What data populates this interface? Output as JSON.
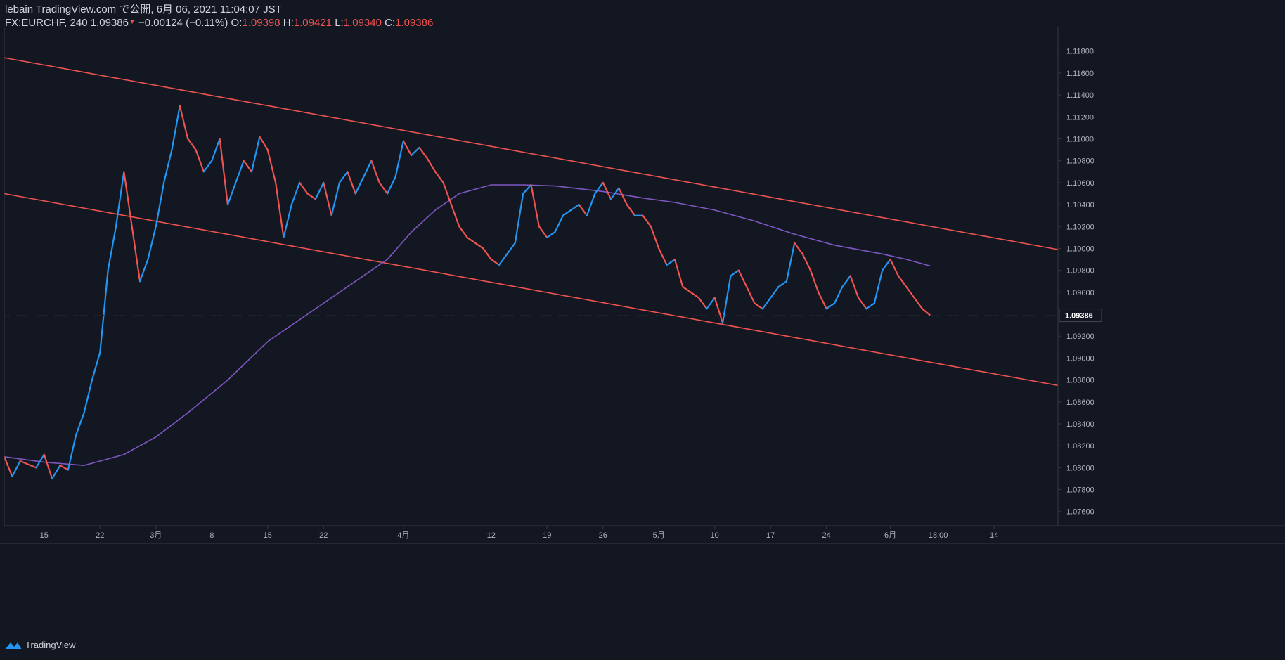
{
  "header": {
    "published_line": "lebain TradingView.com で公開, 6月 06, 2021 11:04:07 JST",
    "symbol": "FX:EURCHF, 240",
    "last_price": "1.09386",
    "change": "−0.00124 (−0.11%)",
    "o_label": "O:",
    "o_value": "1.09398",
    "h_label": "H:",
    "h_value": "1.09421",
    "l_label": "L:",
    "l_value": "1.09340",
    "c_label": "C:",
    "c_value": "1.09386"
  },
  "footer": {
    "brand": "TradingView"
  },
  "colors": {
    "background": "#131722",
    "up": "#2196f3",
    "down": "#ef5350",
    "channel": "#ef5350",
    "moving_average": "#7e57c2",
    "text": "#d1d4dc",
    "axis_text": "#b2b5be",
    "axis_line": "#363a45"
  },
  "chart_data": {
    "type": "line",
    "instrument": "FX:EURCHF",
    "timeframe": "240",
    "y_range": [
      1.0747,
      1.1201
    ],
    "x_range": [
      "2021-02-10",
      "2021-06-22"
    ],
    "y_ticks": [
      "1.11800",
      "1.11600",
      "1.11400",
      "1.11200",
      "1.11000",
      "1.10800",
      "1.10600",
      "1.10400",
      "1.10200",
      "1.10000",
      "1.09800",
      "1.09600",
      "1.09200",
      "1.09000",
      "1.08800",
      "1.08600",
      "1.08400",
      "1.08200",
      "1.08000",
      "1.07800",
      "1.07600"
    ],
    "y_tick_values": [
      1.118,
      1.116,
      1.114,
      1.112,
      1.11,
      1.108,
      1.106,
      1.104,
      1.102,
      1.1,
      1.098,
      1.096,
      1.092,
      1.09,
      1.088,
      1.086,
      1.084,
      1.082,
      1.08,
      1.078,
      1.076
    ],
    "x_ticks": [
      {
        "label": "15",
        "date": "2021-02-15"
      },
      {
        "label": "22",
        "date": "2021-02-22"
      },
      {
        "label": "3月",
        "date": "2021-03-01"
      },
      {
        "label": "8",
        "date": "2021-03-08"
      },
      {
        "label": "15",
        "date": "2021-03-15"
      },
      {
        "label": "22",
        "date": "2021-03-22"
      },
      {
        "label": "4月",
        "date": "2021-04-01"
      },
      {
        "label": "12",
        "date": "2021-04-12"
      },
      {
        "label": "19",
        "date": "2021-04-19"
      },
      {
        "label": "26",
        "date": "2021-04-26"
      },
      {
        "label": "5月",
        "date": "2021-05-03"
      },
      {
        "label": "10",
        "date": "2021-05-10"
      },
      {
        "label": "17",
        "date": "2021-05-17"
      },
      {
        "label": "24",
        "date": "2021-05-24"
      },
      {
        "label": "6月",
        "date": "2021-06-01"
      },
      {
        "label": "18:00",
        "date": "2021-06-07"
      },
      {
        "label": "14",
        "date": "2021-06-14"
      }
    ],
    "last_price_label": "1.09386",
    "price_path": [
      [
        "2021-02-10",
        1.081
      ],
      [
        "2021-02-11",
        1.0792
      ],
      [
        "2021-02-12",
        1.0806
      ],
      [
        "2021-02-14",
        1.08
      ],
      [
        "2021-02-15",
        1.0812
      ],
      [
        "2021-02-16",
        1.079
      ],
      [
        "2021-02-17",
        1.0802
      ],
      [
        "2021-02-18",
        1.0798
      ],
      [
        "2021-02-19",
        1.083
      ],
      [
        "2021-02-20",
        1.085
      ],
      [
        "2021-02-21",
        1.088
      ],
      [
        "2021-02-22",
        1.0905
      ],
      [
        "2021-02-23",
        1.098
      ],
      [
        "2021-02-24",
        1.102
      ],
      [
        "2021-02-25",
        1.107
      ],
      [
        "2021-02-26",
        1.102
      ],
      [
        "2021-02-27",
        1.097
      ],
      [
        "2021-02-28",
        1.099
      ],
      [
        "2021-03-01",
        1.102
      ],
      [
        "2021-03-02",
        1.106
      ],
      [
        "2021-03-03",
        1.109
      ],
      [
        "2021-03-04",
        1.113
      ],
      [
        "2021-03-05",
        1.11
      ],
      [
        "2021-03-06",
        1.109
      ],
      [
        "2021-03-07",
        1.107
      ],
      [
        "2021-03-08",
        1.108
      ],
      [
        "2021-03-09",
        1.11
      ],
      [
        "2021-03-10",
        1.104
      ],
      [
        "2021-03-11",
        1.106
      ],
      [
        "2021-03-12",
        1.108
      ],
      [
        "2021-03-13",
        1.107
      ],
      [
        "2021-03-14",
        1.1102
      ],
      [
        "2021-03-15",
        1.109
      ],
      [
        "2021-03-16",
        1.106
      ],
      [
        "2021-03-17",
        1.101
      ],
      [
        "2021-03-18",
        1.104
      ],
      [
        "2021-03-19",
        1.106
      ],
      [
        "2021-03-20",
        1.105
      ],
      [
        "2021-03-21",
        1.1045
      ],
      [
        "2021-03-22",
        1.106
      ],
      [
        "2021-03-23",
        1.103
      ],
      [
        "2021-03-24",
        1.106
      ],
      [
        "2021-03-25",
        1.107
      ],
      [
        "2021-03-26",
        1.105
      ],
      [
        "2021-03-27",
        1.1065
      ],
      [
        "2021-03-28",
        1.108
      ],
      [
        "2021-03-29",
        1.106
      ],
      [
        "2021-03-30",
        1.105
      ],
      [
        "2021-03-31",
        1.1065
      ],
      [
        "2021-04-01",
        1.1098
      ],
      [
        "2021-04-02",
        1.1085
      ],
      [
        "2021-04-03",
        1.1092
      ],
      [
        "2021-04-04",
        1.1082
      ],
      [
        "2021-04-05",
        1.107
      ],
      [
        "2021-04-06",
        1.106
      ],
      [
        "2021-04-07",
        1.104
      ],
      [
        "2021-04-08",
        1.102
      ],
      [
        "2021-04-09",
        1.101
      ],
      [
        "2021-04-10",
        1.1005
      ],
      [
        "2021-04-11",
        1.1
      ],
      [
        "2021-04-12",
        1.099
      ],
      [
        "2021-04-13",
        1.0985
      ],
      [
        "2021-04-14",
        1.0995
      ],
      [
        "2021-04-15",
        1.1005
      ],
      [
        "2021-04-16",
        1.105
      ],
      [
        "2021-04-17",
        1.1058
      ],
      [
        "2021-04-18",
        1.102
      ],
      [
        "2021-04-19",
        1.101
      ],
      [
        "2021-04-20",
        1.1015
      ],
      [
        "2021-04-21",
        1.103
      ],
      [
        "2021-04-22",
        1.1035
      ],
      [
        "2021-04-23",
        1.104
      ],
      [
        "2021-04-24",
        1.103
      ],
      [
        "2021-04-25",
        1.105
      ],
      [
        "2021-04-26",
        1.106
      ],
      [
        "2021-04-27",
        1.1045
      ],
      [
        "2021-04-28",
        1.1055
      ],
      [
        "2021-04-29",
        1.104
      ],
      [
        "2021-04-30",
        1.103
      ],
      [
        "2021-05-01",
        1.103
      ],
      [
        "2021-05-02",
        1.102
      ],
      [
        "2021-05-03",
        1.1
      ],
      [
        "2021-05-04",
        1.0985
      ],
      [
        "2021-05-05",
        1.099
      ],
      [
        "2021-05-06",
        1.0965
      ],
      [
        "2021-05-07",
        1.096
      ],
      [
        "2021-05-08",
        1.0955
      ],
      [
        "2021-05-09",
        1.0945
      ],
      [
        "2021-05-10",
        1.0955
      ],
      [
        "2021-05-11",
        1.0932
      ],
      [
        "2021-05-12",
        1.0975
      ],
      [
        "2021-05-13",
        1.098
      ],
      [
        "2021-05-14",
        1.0965
      ],
      [
        "2021-05-15",
        1.095
      ],
      [
        "2021-05-16",
        1.0945
      ],
      [
        "2021-05-17",
        1.0955
      ],
      [
        "2021-05-18",
        1.0965
      ],
      [
        "2021-05-19",
        1.097
      ],
      [
        "2021-05-20",
        1.1005
      ],
      [
        "2021-05-21",
        1.0995
      ],
      [
        "2021-05-22",
        1.098
      ],
      [
        "2021-05-23",
        1.096
      ],
      [
        "2021-05-24",
        1.0945
      ],
      [
        "2021-05-25",
        1.095
      ],
      [
        "2021-05-26",
        1.0965
      ],
      [
        "2021-05-27",
        1.0975
      ],
      [
        "2021-05-28",
        1.0955
      ],
      [
        "2021-05-29",
        1.0945
      ],
      [
        "2021-05-30",
        1.095
      ],
      [
        "2021-05-31",
        1.098
      ],
      [
        "2021-06-01",
        1.099
      ],
      [
        "2021-06-02",
        1.0975
      ],
      [
        "2021-06-03",
        1.0965
      ],
      [
        "2021-06-04",
        1.0955
      ],
      [
        "2021-06-05",
        1.0945
      ],
      [
        "2021-06-06",
        1.0939
      ]
    ],
    "moving_average_path": [
      [
        "2021-02-10",
        1.081
      ],
      [
        "2021-02-15",
        1.0805
      ],
      [
        "2021-02-20",
        1.0802
      ],
      [
        "2021-02-25",
        1.0812
      ],
      [
        "2021-03-01",
        1.0828
      ],
      [
        "2021-03-05",
        1.085
      ],
      [
        "2021-03-10",
        1.088
      ],
      [
        "2021-03-15",
        1.0915
      ],
      [
        "2021-03-20",
        1.094
      ],
      [
        "2021-03-25",
        1.0965
      ],
      [
        "2021-03-30",
        1.099
      ],
      [
        "2021-04-02",
        1.1015
      ],
      [
        "2021-04-05",
        1.1035
      ],
      [
        "2021-04-08",
        1.105
      ],
      [
        "2021-04-12",
        1.1058
      ],
      [
        "2021-04-16",
        1.1058
      ],
      [
        "2021-04-20",
        1.1057
      ],
      [
        "2021-04-26",
        1.1052
      ],
      [
        "2021-05-01",
        1.1046
      ],
      [
        "2021-05-05",
        1.1042
      ],
      [
        "2021-05-10",
        1.1035
      ],
      [
        "2021-05-15",
        1.1025
      ],
      [
        "2021-05-20",
        1.1013
      ],
      [
        "2021-05-25",
        1.1003
      ],
      [
        "2021-05-31",
        1.0995
      ],
      [
        "2021-06-03",
        1.099
      ],
      [
        "2021-06-06",
        1.0984
      ]
    ],
    "channel_lines": [
      {
        "name": "upper",
        "points": [
          [
            "2021-02-10",
            1.1174
          ],
          [
            "2021-06-22",
            1.0999
          ]
        ]
      },
      {
        "name": "lower",
        "points": [
          [
            "2021-02-10",
            1.105
          ],
          [
            "2021-06-22",
            1.0875
          ]
        ]
      }
    ],
    "grid": false
  }
}
